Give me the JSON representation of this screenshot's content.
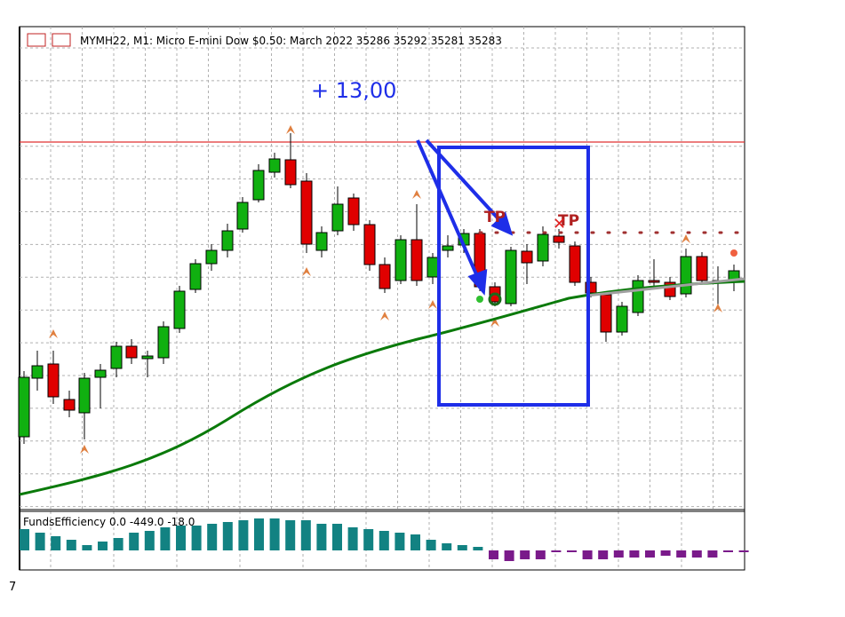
{
  "header": {
    "title": "MYMH22, M1:  Micro E-mini Dow $0.50: March 2022  35286 35292 35281 35283"
  },
  "annotation": {
    "profit": "+ 13,00"
  },
  "markers": {
    "tp_labels": [
      "TP",
      "TP"
    ]
  },
  "indicator": {
    "label": "FundsEfficiency 0.0 -449.0 -18.0"
  },
  "footer": {
    "label": "7"
  }
}
